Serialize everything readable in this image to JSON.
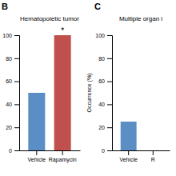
{
  "chart_data": [
    {
      "type": "bar",
      "title": "Hematopoietic tumor",
      "categories": [
        "Vehicle",
        "Rapamycin"
      ],
      "values": [
        50,
        100
      ],
      "colors": [
        "#5b8ec4",
        "#c0504d"
      ],
      "ylim": [
        0,
        100
      ],
      "yticks": [
        0,
        20,
        40,
        60,
        80,
        100
      ],
      "annotations": [
        {
          "text": "B"
        },
        {
          "text": "*",
          "category": "Rapamycin"
        }
      ]
    },
    {
      "type": "bar",
      "title": "Multiple organ i",
      "categories": [
        "Vehicle",
        "R"
      ],
      "values": [
        25,
        null
      ],
      "color": "#5b8ec4",
      "ylabel": "Occurrence (%)",
      "ylim": [
        0,
        100
      ],
      "yticks": [
        0,
        20,
        40,
        60,
        80,
        100
      ],
      "annotations": [
        {
          "text": "C"
        }
      ]
    }
  ]
}
